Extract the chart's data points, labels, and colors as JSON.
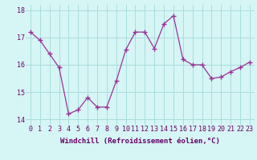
{
  "x": [
    0,
    1,
    2,
    3,
    4,
    5,
    6,
    7,
    8,
    9,
    10,
    11,
    12,
    13,
    14,
    15,
    16,
    17,
    18,
    19,
    20,
    21,
    22,
    23
  ],
  "y": [
    17.2,
    16.9,
    16.4,
    15.9,
    14.2,
    14.35,
    14.8,
    14.45,
    14.45,
    15.4,
    16.55,
    17.2,
    17.2,
    16.6,
    17.5,
    17.8,
    16.2,
    16.0,
    16.0,
    15.5,
    15.55,
    15.75,
    15.9,
    16.1
  ],
  "line_color": "#993399",
  "marker": "+",
  "bg_color": "#d6f5f5",
  "grid_color": "#aadddd",
  "xlabel": "Windchill (Refroidissement éolien,°C)",
  "ylim": [
    13.8,
    18.2
  ],
  "xlim": [
    -0.5,
    23.5
  ],
  "yticks": [
    14,
    15,
    16,
    17,
    18
  ],
  "xticks": [
    0,
    1,
    2,
    3,
    4,
    5,
    6,
    7,
    8,
    9,
    10,
    11,
    12,
    13,
    14,
    15,
    16,
    17,
    18,
    19,
    20,
    21,
    22,
    23
  ],
  "xtick_labels": [
    "0",
    "1",
    "2",
    "3",
    "4",
    "5",
    "6",
    "7",
    "8",
    "9",
    "10",
    "11",
    "12",
    "13",
    "14",
    "15",
    "16",
    "17",
    "18",
    "19",
    "20",
    "21",
    "22",
    "23"
  ],
  "tick_color": "#660066",
  "label_color": "#660066",
  "label_fontsize": 6.5,
  "tick_fontsize": 6.0
}
